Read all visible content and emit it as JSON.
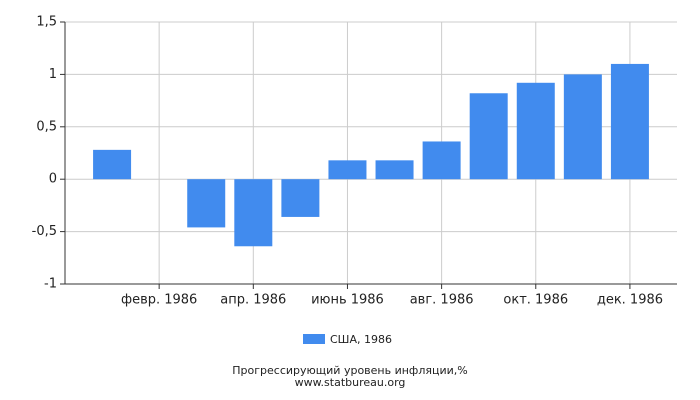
{
  "chart_data": {
    "type": "bar",
    "categories": [
      null,
      "февр. 1986",
      null,
      "апр. 1986",
      null,
      "июнь 1986",
      null,
      "авг. 1986",
      null,
      "окт. 1986",
      null,
      "дек. 1986"
    ],
    "series": [
      {
        "name": "США, 1986",
        "color": "#418BEE",
        "values": [
          0.28,
          0,
          -0.46,
          -0.64,
          -0.36,
          0.18,
          0.18,
          0.36,
          0.82,
          0.92,
          1.0,
          1.1
        ]
      }
    ],
    "ylim": [
      -1,
      1.5
    ],
    "yticks": [
      {
        "value": 1.5,
        "label": "1,5"
      },
      1,
      {
        "value": 0.5,
        "label": "0,5"
      },
      0,
      {
        "value": -0.5,
        "label": "-0,5"
      },
      -1
    ],
    "grid": true,
    "legend": "bottom",
    "xlabel": "Прогрессирующий уровень инфляции,%",
    "source": "www.statbureau.org"
  }
}
